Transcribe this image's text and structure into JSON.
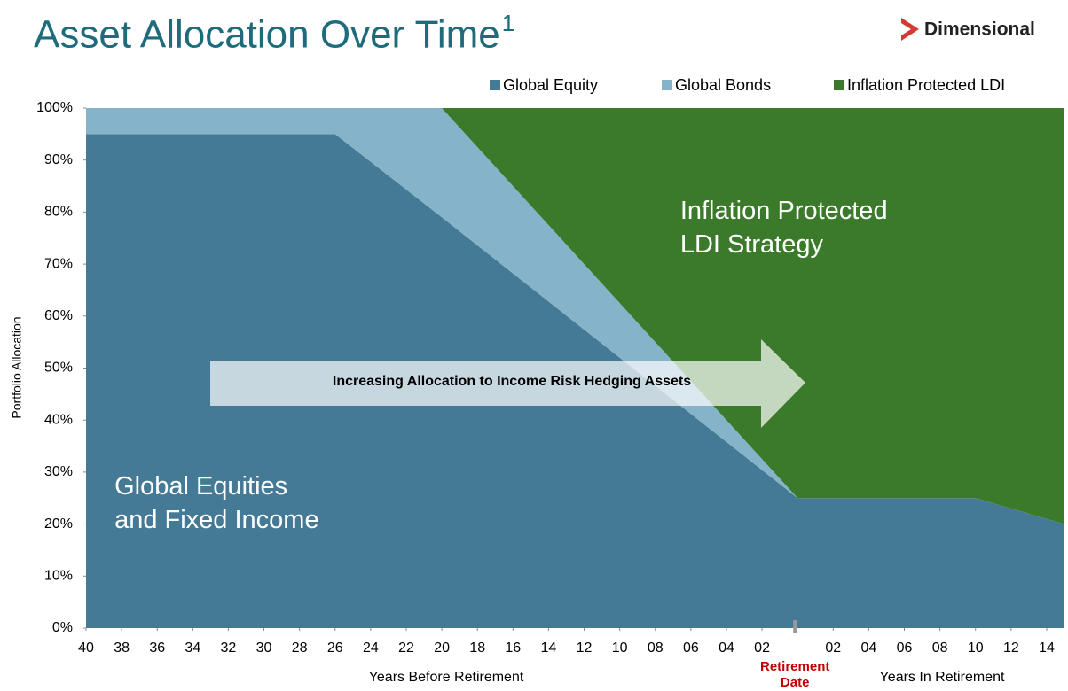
{
  "chart_data": {
    "type": "stacked_area",
    "title": "Asset Allocation Over Time",
    "title_superscript": "1",
    "brand": "Dimensional",
    "y_label": "Portfolio Allocation",
    "x_label_left": "Years Before Retirement",
    "x_label_right": "Years In Retirement",
    "marker_label": [
      "Retirement",
      "Date"
    ],
    "marker_x": 0,
    "arrow_text": "Increasing Allocation to Income Risk Hedging Assets",
    "annotations": [
      {
        "lines": [
          "Inflation Protected",
          "LDI Strategy"
        ],
        "x": -6.6,
        "y": 80
      },
      {
        "lines": [
          "Global Equities",
          "and Fixed Income"
        ],
        "x": -38.4,
        "y": 27
      }
    ],
    "x": [
      -40,
      -26,
      -20,
      0,
      10,
      15
    ],
    "series": [
      {
        "name": "Global Equity",
        "color": "#457a96",
        "values": [
          95,
          95,
          79,
          25,
          25,
          20
        ]
      },
      {
        "name": "Global Bonds",
        "color": "#85b3c9",
        "values": [
          5,
          5,
          21,
          0,
          0,
          0
        ]
      },
      {
        "name": "Inflation Protected LDI",
        "color": "#3b7a2b",
        "values": [
          0,
          0,
          0,
          75,
          75,
          80
        ]
      }
    ],
    "xlim": [
      -40,
      15
    ],
    "xticks": [
      {
        "value": -40,
        "label": "40"
      },
      {
        "value": -38,
        "label": "38"
      },
      {
        "value": -36,
        "label": "36"
      },
      {
        "value": -34,
        "label": "34"
      },
      {
        "value": -32,
        "label": "32"
      },
      {
        "value": -30,
        "label": "30"
      },
      {
        "value": -28,
        "label": "28"
      },
      {
        "value": -26,
        "label": "26"
      },
      {
        "value": -24,
        "label": "24"
      },
      {
        "value": -22,
        "label": "22"
      },
      {
        "value": -20,
        "label": "20"
      },
      {
        "value": -18,
        "label": "18"
      },
      {
        "value": -16,
        "label": "16"
      },
      {
        "value": -14,
        "label": "14"
      },
      {
        "value": -12,
        "label": "12"
      },
      {
        "value": -10,
        "label": "10"
      },
      {
        "value": -8,
        "label": "08"
      },
      {
        "value": -6,
        "label": "06"
      },
      {
        "value": -4,
        "label": "04"
      },
      {
        "value": -2,
        "label": "02"
      },
      {
        "value": 2,
        "label": "02"
      },
      {
        "value": 4,
        "label": "04"
      },
      {
        "value": 6,
        "label": "06"
      },
      {
        "value": 8,
        "label": "08"
      },
      {
        "value": 10,
        "label": "10"
      },
      {
        "value": 12,
        "label": "12"
      },
      {
        "value": 14,
        "label": "14"
      }
    ],
    "ylim": [
      0,
      100
    ],
    "yticks": [
      {
        "value": 0,
        "label": "0%"
      },
      {
        "value": 10,
        "label": "10%"
      },
      {
        "value": 20,
        "label": "20%"
      },
      {
        "value": 30,
        "label": "30%"
      },
      {
        "value": 40,
        "label": "40%"
      },
      {
        "value": 50,
        "label": "50%"
      },
      {
        "value": 60,
        "label": "60%"
      },
      {
        "value": 70,
        "label": "70%"
      },
      {
        "value": 80,
        "label": "80%"
      },
      {
        "value": 90,
        "label": "90%"
      },
      {
        "value": 100,
        "label": "100%"
      }
    ],
    "legend": "top-right"
  }
}
